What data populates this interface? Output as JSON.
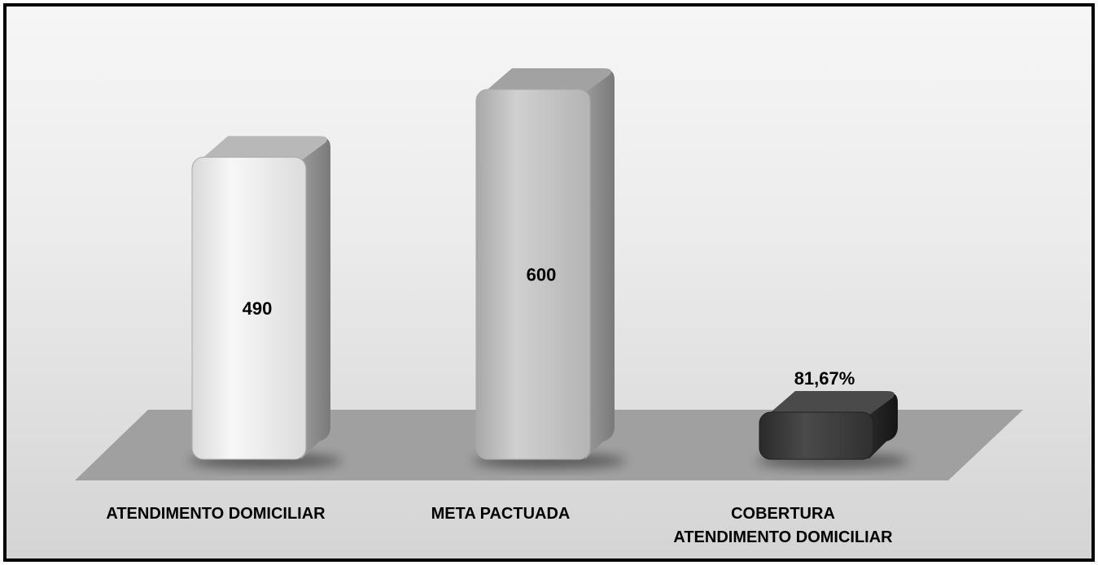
{
  "chart_data": {
    "type": "bar",
    "categories": [
      [
        "ATENDIMENTO DOMICILIAR"
      ],
      [
        "META PACTUADA"
      ],
      [
        "COBERTURA",
        "ATENDIMENTO DOMICILIAR"
      ]
    ],
    "values": [
      490,
      600,
      81.67
    ],
    "data_labels": [
      "490",
      "600",
      "81,67%"
    ],
    "bar_colors": [
      "#e8e8e8",
      "#c2c2c2",
      "#3a3a3a"
    ],
    "ylim": [
      0,
      600
    ],
    "grid": false,
    "legend": "none"
  }
}
